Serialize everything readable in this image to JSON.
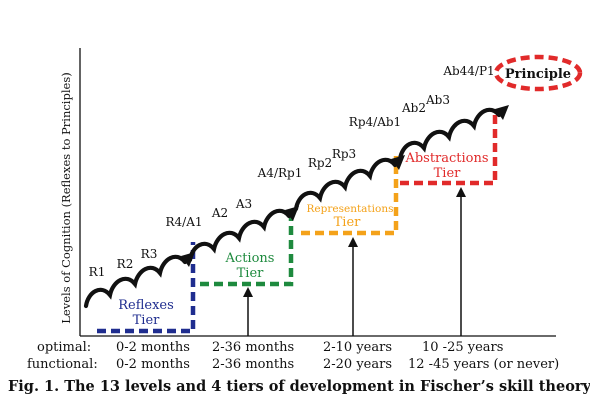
{
  "y_axis_label": "Levels of Cognition (Reflexes to Principles)",
  "colors": {
    "reflexes": "#1f2d8f",
    "actions": "#1e8a3e",
    "representations": "#f4a21a",
    "abstractions": "#e12a2a",
    "principle": "#e12a2a",
    "ink": "#111111"
  },
  "tiers": [
    {
      "name": "Reflexes",
      "tier_word": "Tier",
      "color_key": "reflexes"
    },
    {
      "name": "Actions",
      "tier_word": "Tier",
      "color_key": "actions"
    },
    {
      "name": "Representations",
      "tier_word": "Tier",
      "color_key": "representations"
    },
    {
      "name": "Abstractions",
      "tier_word": "Tier",
      "color_key": "abstractions"
    }
  ],
  "levels": [
    "R1",
    "R2",
    "R3",
    "R4/A1",
    "A2",
    "A3",
    "A4/Rp1",
    "Rp2",
    "Rp3",
    "Rp4/Ab1",
    "Ab2",
    "Ab3",
    "Ab44/P1"
  ],
  "principle_label": "Principle",
  "ages": {
    "optimal_label": "optimal:",
    "functional_label": "functional:",
    "optimal": [
      "0-2 months",
      "2-36 months",
      "2-10 years",
      "10 -25 years"
    ],
    "functional": [
      "0-2 months",
      "2-36 months",
      "2-20 years",
      "12 -45 years (or never)"
    ]
  },
  "caption": "Fig. 1. The 13 levels and 4 tiers of development in Fischer’s skill theory"
}
